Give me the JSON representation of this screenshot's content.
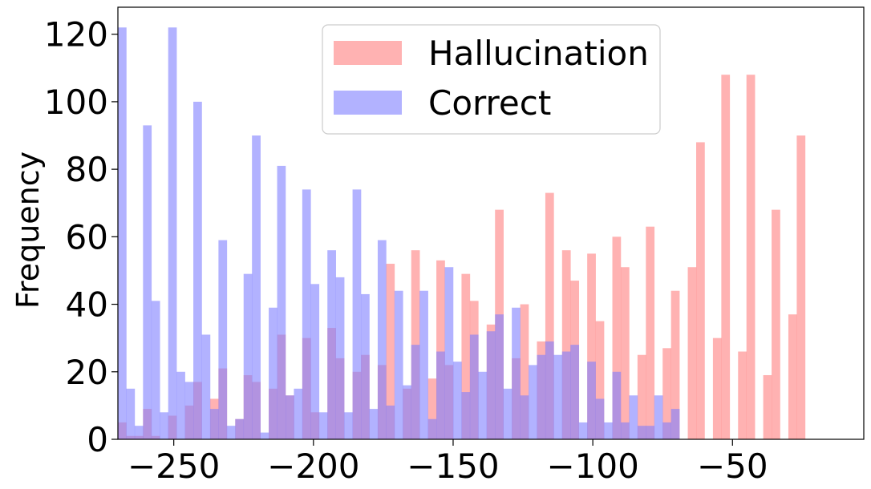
{
  "chart_data": {
    "type": "bar",
    "subtype": "overlapping-histogram",
    "title": "",
    "xlabel": "",
    "ylabel": "Frequency",
    "xlim": [
      -270,
      -3
    ],
    "ylim": [
      0,
      128
    ],
    "xticks": [
      -250,
      -200,
      -150,
      -100,
      -50
    ],
    "xtick_labels": [
      "−250",
      "−200",
      "−150",
      "−100",
      "−50"
    ],
    "yticks": [
      0,
      20,
      40,
      60,
      80,
      100,
      120
    ],
    "ytick_labels": [
      "0",
      "20",
      "40",
      "60",
      "80",
      "100",
      "120"
    ],
    "grid": false,
    "legend_position": "top-center",
    "bin_start": -270,
    "bin_width": 3,
    "series": [
      {
        "name": "Hallucination",
        "color": "#ff7f7f",
        "values": [
          5,
          1,
          1,
          9,
          1,
          0,
          7,
          0,
          10,
          17,
          0,
          12,
          21,
          0,
          6,
          19,
          17,
          0,
          15,
          31,
          13,
          0,
          30,
          8,
          0,
          33,
          24,
          0,
          20,
          25,
          0,
          22,
          52,
          0,
          15,
          56,
          0,
          18,
          53,
          22,
          0,
          49,
          41,
          0,
          34,
          68,
          0,
          24,
          40,
          0,
          29,
          73,
          0,
          56,
          47,
          0,
          55,
          35,
          0,
          60,
          51,
          0,
          25,
          63,
          0,
          27,
          44,
          0,
          51,
          88,
          0,
          30,
          108,
          0,
          26,
          108,
          0,
          19,
          68,
          0,
          37,
          90
        ]
      },
      {
        "name": "Correct",
        "color": "#7f7fff",
        "values": [
          122,
          15,
          4,
          93,
          41,
          8,
          122,
          20,
          17,
          100,
          31,
          9,
          59,
          4,
          6,
          49,
          90,
          2,
          39,
          81,
          13,
          15,
          74,
          46,
          8,
          56,
          48,
          8,
          74,
          43,
          9,
          59,
          10,
          44,
          16,
          28,
          44,
          6,
          26,
          51,
          23,
          14,
          31,
          20,
          32,
          37,
          15,
          39,
          13,
          22,
          25,
          29,
          25,
          26,
          28,
          5,
          23,
          12,
          5,
          20,
          5,
          13,
          4,
          4,
          13,
          5,
          9
        ]
      }
    ]
  }
}
